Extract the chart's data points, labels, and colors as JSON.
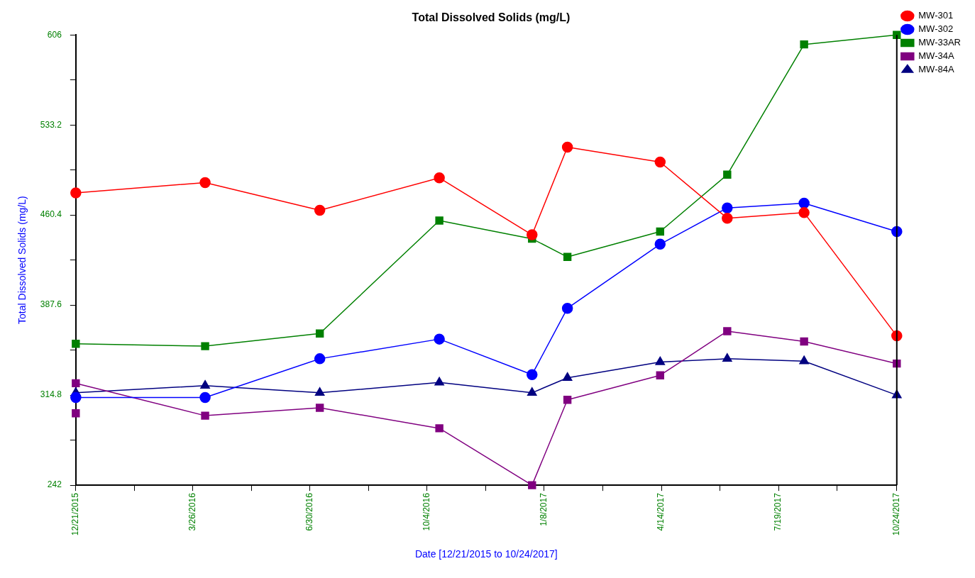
{
  "chart_data": {
    "type": "line",
    "title": "Total Dissolved Solids (mg/L)",
    "xlabel": "Date [12/21/2015 to 10/24/2017]",
    "ylabel": "Total Dissolved Solids (mg/L)",
    "x": [
      "2015-12-21",
      "2016-04-05",
      "2016-07-08",
      "2016-10-14",
      "2016-12-29",
      "2017-01-27",
      "2017-04-13",
      "2017-06-07",
      "2017-08-09",
      "2017-10-24"
    ],
    "series": [
      {
        "name": "MW-301",
        "color": "#ff0000",
        "marker": "circle",
        "values": [
          478.3,
          486.6,
          464.2,
          490.4,
          444.4,
          515.3,
          503.2,
          457.8,
          462.3,
          362.7
        ]
      },
      {
        "name": "MW-302",
        "color": "#0000ff",
        "marker": "circle",
        "values": [
          312.9,
          312.9,
          344.2,
          360.1,
          331.4,
          385.0,
          436.8,
          466.1,
          470.0,
          447.0
        ]
      },
      {
        "name": "MW-33AR",
        "color": "#008000",
        "marker": "square",
        "values": [
          356.3,
          354.4,
          364.6,
          455.9,
          441.2,
          426.5,
          447.0,
          493.0,
          598.3,
          606
        ]
      },
      {
        "type": "scatter",
        "color": "#800080",
        "marker": "square",
        "x": [
          "2015-12-21"
        ],
        "values": [
          300.1
        ]
      },
      {
        "name": "MW-34A",
        "color": "#800080",
        "marker": "square",
        "values": [
          324.4,
          298.2,
          304.6,
          288.0,
          242,
          311.0,
          330.8,
          366.5,
          358.2,
          340.3
        ]
      },
      {
        "name": "MW-84A",
        "color": "#000080",
        "marker": "triangle",
        "values": [
          316.7,
          322.5,
          316.7,
          325.0,
          316.7,
          328.8,
          341.6,
          344.2,
          342.3,
          314.8
        ]
      }
    ],
    "xlim": [
      "2015-12-21",
      "2017-10-24"
    ],
    "xticks": [
      {
        "value": "2015-12-21",
        "label": "12/21/2015"
      },
      {
        "value": "2016-02-07",
        "label": null
      },
      {
        "value": "2016-03-26",
        "label": "3/26/2016"
      },
      {
        "value": "2016-05-13",
        "label": null
      },
      {
        "value": "2016-06-30",
        "label": "6/30/2016"
      },
      {
        "value": "2016-08-17",
        "label": null
      },
      {
        "value": "2016-10-04",
        "label": "10/4/2016"
      },
      {
        "value": "2016-11-21",
        "label": null
      },
      {
        "value": "2017-01-08",
        "label": "1/8/2017"
      },
      {
        "value": "2017-02-25",
        "label": null
      },
      {
        "value": "2017-04-14",
        "label": "4/14/2017"
      },
      {
        "value": "2017-06-01",
        "label": null
      },
      {
        "value": "2017-07-19",
        "label": "7/19/2017"
      },
      {
        "value": "2017-09-05",
        "label": null
      },
      {
        "value": "2017-10-24",
        "label": "10/24/2017"
      }
    ],
    "ylim": [
      242,
      606
    ],
    "yticks": [
      242,
      {
        "value": 278.4,
        "label": null
      },
      314.8,
      {
        "value": 351.2,
        "label": null
      },
      387.6,
      {
        "value": 424,
        "label": null
      },
      460.4,
      {
        "value": 496.8,
        "label": null
      },
      533.2,
      {
        "value": 569.6,
        "label": null
      },
      606
    ],
    "grid": false,
    "legend": "top right",
    "line_style": "solid"
  }
}
